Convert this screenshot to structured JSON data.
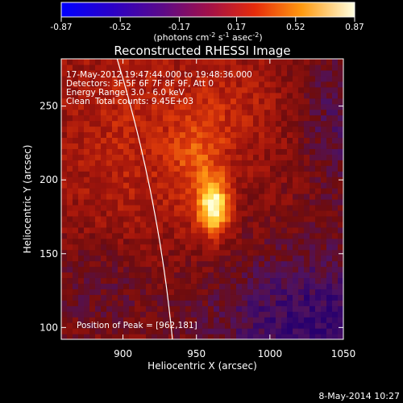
{
  "colorbar": {
    "ticks": [
      "-0.87",
      "-0.52",
      "-0.17",
      "0.17",
      "0.52",
      "0.87"
    ],
    "unit_label": "(photons cm",
    "unit_sup1": "-2",
    "unit_mid": " s",
    "unit_sup2": "-1",
    "unit_mid2": " asec",
    "unit_sup3": "-2",
    "unit_end": ")",
    "range": [
      -0.87,
      0.87
    ]
  },
  "chart_data": {
    "type": "heatmap",
    "title": "Reconstructed RHESSI Image",
    "xlabel": "Heliocentric X (arcsec)",
    "ylabel": "Heliocentric Y (arcsec)",
    "xlim": [
      858,
      1050
    ],
    "ylim": [
      92,
      282
    ],
    "x_ticks": [
      900,
      950,
      1000,
      1050
    ],
    "y_ticks": [
      100,
      150,
      200,
      250
    ],
    "peak": [
      962,
      181
    ],
    "limb_center": [
      0,
      0
    ],
    "limb_radius": 968,
    "annotations": [
      "17-May-2012 19:47:44.000 to 19:48:36.000",
      "Detectors: 3F 5F 6F 7F 8F 9F, Att 0",
      "Energy Range: 3.0 - 6.0 keV",
      "Clean",
      "Total counts: 9.45E+03"
    ],
    "peak_label": "Position of Peak = [962,181]"
  },
  "footer": {
    "date": "8-May-2014 10:27"
  }
}
